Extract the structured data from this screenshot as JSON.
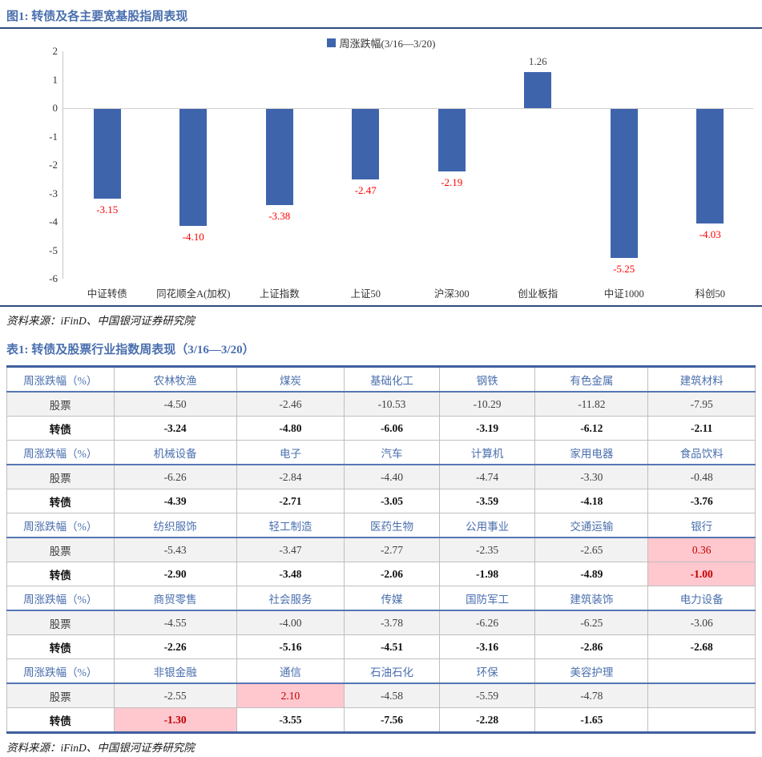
{
  "figure": {
    "title": "图1: 转债及各主要宽基股指周表现",
    "source": "资料来源：iFinD、中国银河证券研究院"
  },
  "chart_data": {
    "type": "bar",
    "title": "",
    "legend": "周涨跌幅(3/16—3/20)",
    "legend_position": "top-center",
    "grid": false,
    "categories": [
      "中证转债",
      "同花顺全A(加权)",
      "上证指数",
      "上证50",
      "沪深300",
      "创业板指",
      "中证1000",
      "科创50"
    ],
    "values": [
      -3.15,
      -4.1,
      -3.38,
      -2.47,
      -2.19,
      1.26,
      -5.25,
      -4.03
    ],
    "labels": [
      "-3.15",
      "-4.10",
      "-3.38",
      "-2.47",
      "-2.19",
      "1.26",
      "-5.25",
      "-4.03"
    ],
    "xlabel": "",
    "ylabel": "",
    "ylim": [
      -6,
      2
    ],
    "yticks": [
      2,
      1,
      0,
      -1,
      -2,
      -3,
      -4,
      -5,
      -6
    ],
    "bar_color": "#3e64ac",
    "negative_label_color": "#ff0000",
    "positive_label_color": "#404040"
  },
  "table": {
    "title": "表1: 转债及股票行业指数周表现（3/16—3/20）",
    "source": "资料来源：iFinD、中国银河证券研究院",
    "row_header": "周涨跌幅（%）",
    "stock_label": "股票",
    "bond_label": "转债",
    "groups": [
      {
        "industries": [
          "农林牧渔",
          "煤炭",
          "基础化工",
          "钢铁",
          "有色金属",
          "建筑材料"
        ],
        "stock": [
          "-4.50",
          "-2.46",
          "-10.53",
          "-10.29",
          "-11.82",
          "-7.95"
        ],
        "bond": [
          "-3.24",
          "-4.80",
          "-6.06",
          "-3.19",
          "-6.12",
          "-2.11"
        ],
        "stock_highlight": [],
        "bond_highlight": []
      },
      {
        "industries": [
          "机械设备",
          "电子",
          "汽车",
          "计算机",
          "家用电器",
          "食品饮料"
        ],
        "stock": [
          "-6.26",
          "-2.84",
          "-4.40",
          "-4.74",
          "-3.30",
          "-0.48"
        ],
        "bond": [
          "-4.39",
          "-2.71",
          "-3.05",
          "-3.59",
          "-4.18",
          "-3.76"
        ],
        "stock_highlight": [],
        "bond_highlight": []
      },
      {
        "industries": [
          "纺织服饰",
          "轻工制造",
          "医药生物",
          "公用事业",
          "交通运输",
          "银行"
        ],
        "stock": [
          "-5.43",
          "-3.47",
          "-2.77",
          "-2.35",
          "-2.65",
          "0.36"
        ],
        "bond": [
          "-2.90",
          "-3.48",
          "-2.06",
          "-1.98",
          "-4.89",
          "-1.00"
        ],
        "stock_highlight": [
          5
        ],
        "bond_highlight": [
          5
        ]
      },
      {
        "industries": [
          "商贸零售",
          "社会服务",
          "传媒",
          "国防军工",
          "建筑装饰",
          "电力设备"
        ],
        "stock": [
          "-4.55",
          "-4.00",
          "-3.78",
          "-6.26",
          "-6.25",
          "-3.06"
        ],
        "bond": [
          "-2.26",
          "-5.16",
          "-4.51",
          "-3.16",
          "-2.86",
          "-2.68"
        ],
        "stock_highlight": [],
        "bond_highlight": []
      },
      {
        "industries": [
          "非银金融",
          "通信",
          "石油石化",
          "环保",
          "美容护理",
          ""
        ],
        "stock": [
          "-2.55",
          "2.10",
          "-4.58",
          "-5.59",
          "-4.78",
          ""
        ],
        "bond": [
          "-1.30",
          "-3.55",
          "-7.56",
          "-2.28",
          "-1.65",
          ""
        ],
        "stock_highlight": [
          1
        ],
        "bond_highlight": [
          0
        ]
      }
    ]
  },
  "colors": {
    "accent_blue": "#4a6fae",
    "rule_navy": "#2f4d7e",
    "table_border_blue": "#3f5f9e",
    "bar_blue": "#3e64ac",
    "highlight_pink": "#ffc7ce",
    "highlight_red": "#c00000",
    "chart_label_red": "#ff0000"
  }
}
